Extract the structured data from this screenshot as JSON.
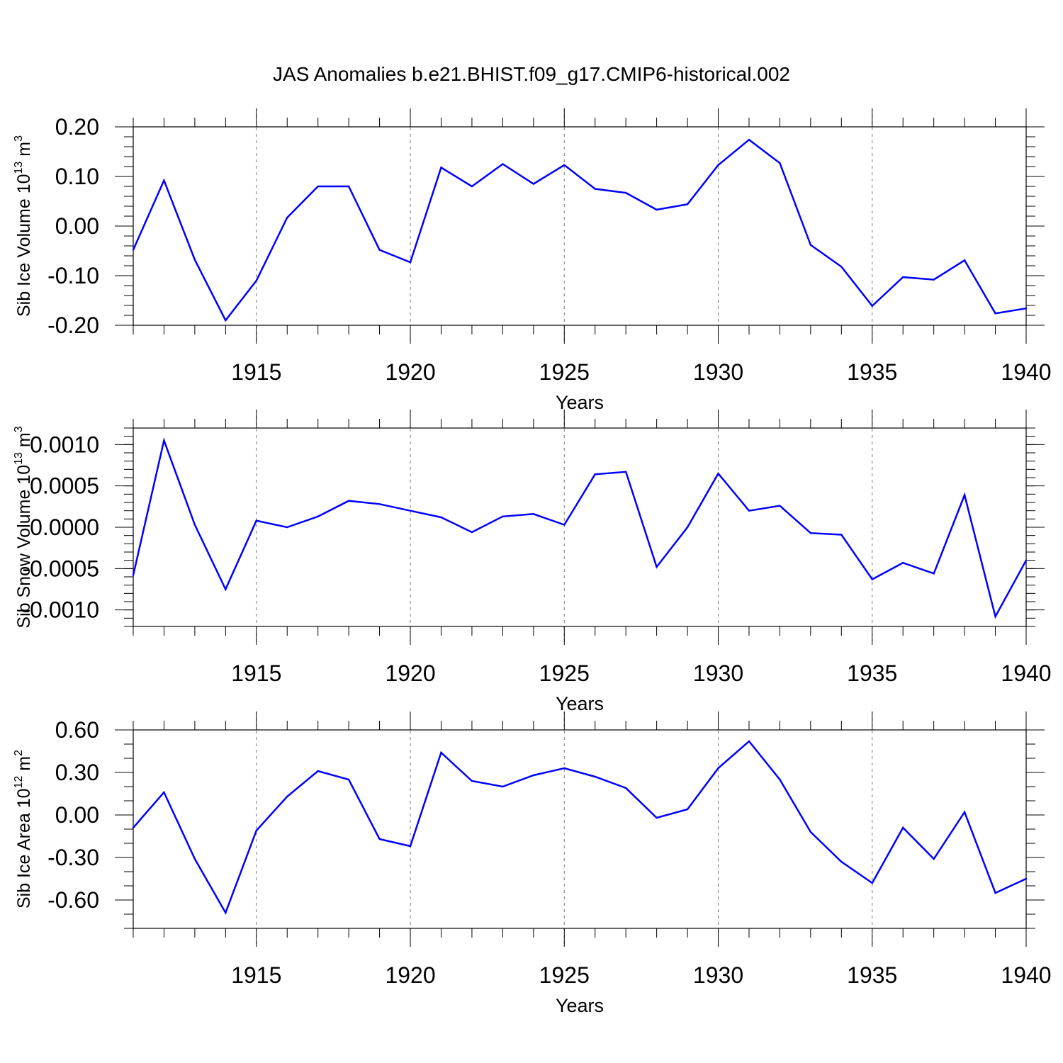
{
  "chart_data": {
    "title": "JAS Anomalies b.e21.BHIST.f09_g17.CMIP6-historical.002",
    "type": "line",
    "series_color": "#0000ff",
    "grid_color": "#777777",
    "panels": [
      {
        "id": "volume",
        "ylabel_main": "Sib Ice Volume 10",
        "ylabel_exp": "13",
        "ylabel_unit": " m",
        "ylabel_unit_exp": "3",
        "xlabel": "Years",
        "xlim": [
          1911,
          1940
        ],
        "ylim": [
          -0.2,
          0.2
        ],
        "yticks": [
          -0.2,
          -0.1,
          0.0,
          0.1,
          0.2
        ],
        "ytick_labels": [
          "-0.20",
          "-0.10",
          "0.00",
          "0.10",
          "0.20"
        ],
        "yminor_step": 0.02,
        "xticks": [
          1915,
          1920,
          1925,
          1930,
          1935,
          1940
        ],
        "xtick_labels": [
          "1915",
          "1920",
          "1925",
          "1930",
          "1935",
          "1940"
        ],
        "x": [
          1911,
          1912,
          1913,
          1914,
          1915,
          1916,
          1917,
          1918,
          1919,
          1920,
          1921,
          1922,
          1923,
          1924,
          1925,
          1926,
          1927,
          1928,
          1929,
          1930,
          1931,
          1932,
          1933,
          1934,
          1935,
          1936,
          1937,
          1938,
          1939,
          1940
        ],
        "values": [
          -0.048,
          0.092,
          -0.068,
          -0.19,
          -0.11,
          0.017,
          0.08,
          0.08,
          -0.048,
          -0.073,
          0.118,
          0.08,
          0.125,
          0.085,
          0.123,
          0.075,
          0.067,
          0.033,
          0.044,
          0.123,
          0.174,
          0.127,
          -0.038,
          -0.082,
          -0.161,
          -0.103,
          -0.108,
          -0.069,
          -0.176,
          -0.166
        ]
      },
      {
        "id": "snow",
        "ylabel_main": "Sib Snow Volume 10",
        "ylabel_exp": "13",
        "ylabel_unit": " m",
        "ylabel_unit_exp": "3",
        "xlabel": "Years",
        "xlim": [
          1911,
          1940
        ],
        "ylim": [
          -0.0012,
          0.0012
        ],
        "yticks": [
          -0.001,
          -0.0005,
          0.0,
          0.0005,
          0.001
        ],
        "ytick_labels": [
          "-0.0010",
          "-0.0005",
          "0.0000",
          "0.0005",
          "0.0010"
        ],
        "yminor_step": 0.0001,
        "xticks": [
          1915,
          1920,
          1925,
          1930,
          1935,
          1940
        ],
        "xtick_labels": [
          "1915",
          "1920",
          "1925",
          "1930",
          "1935",
          "1940"
        ],
        "x": [
          1911,
          1912,
          1913,
          1914,
          1915,
          1916,
          1917,
          1918,
          1919,
          1920,
          1921,
          1922,
          1923,
          1924,
          1925,
          1926,
          1927,
          1928,
          1929,
          1930,
          1931,
          1932,
          1933,
          1934,
          1935,
          1936,
          1937,
          1938,
          1939,
          1940
        ],
        "values": [
          -0.00058,
          0.00105,
          3e-05,
          -0.00075,
          8e-05,
          0.0,
          0.00013,
          0.00032,
          0.00028,
          0.0002,
          0.00012,
          -6e-05,
          0.00013,
          0.00016,
          3e-05,
          0.00064,
          0.00067,
          -0.00048,
          0.0,
          0.00065,
          0.0002,
          0.00026,
          -7e-05,
          -9e-05,
          -0.00063,
          -0.00043,
          -0.00056,
          0.00039,
          -0.00108,
          -0.0004
        ]
      },
      {
        "id": "area",
        "ylabel_main": "Sib Ice Area 10",
        "ylabel_exp": "12",
        "ylabel_unit": " m",
        "ylabel_unit_exp": "2",
        "xlabel": "Years",
        "xlim": [
          1911,
          1940
        ],
        "ylim": [
          -0.8,
          0.6
        ],
        "yticks": [
          -0.6,
          -0.3,
          0.0,
          0.3,
          0.6
        ],
        "ytick_labels": [
          "-0.60",
          "-0.30",
          "0.00",
          "0.30",
          "0.60"
        ],
        "yminor_step": 0.1,
        "xticks": [
          1915,
          1920,
          1925,
          1930,
          1935,
          1940
        ],
        "xtick_labels": [
          "1915",
          "1920",
          "1925",
          "1930",
          "1935",
          "1940"
        ],
        "x": [
          1911,
          1912,
          1913,
          1914,
          1915,
          1916,
          1917,
          1918,
          1919,
          1920,
          1921,
          1922,
          1923,
          1924,
          1925,
          1926,
          1927,
          1928,
          1929,
          1930,
          1931,
          1932,
          1933,
          1934,
          1935,
          1936,
          1937,
          1938,
          1939,
          1940
        ],
        "values": [
          -0.09,
          0.16,
          -0.31,
          -0.69,
          -0.11,
          0.13,
          0.31,
          0.25,
          -0.17,
          -0.22,
          0.44,
          0.24,
          0.2,
          0.28,
          0.33,
          0.27,
          0.19,
          -0.02,
          0.04,
          0.33,
          0.52,
          0.25,
          -0.12,
          -0.33,
          -0.48,
          -0.09,
          -0.31,
          0.02,
          -0.55,
          -0.45
        ]
      }
    ]
  }
}
